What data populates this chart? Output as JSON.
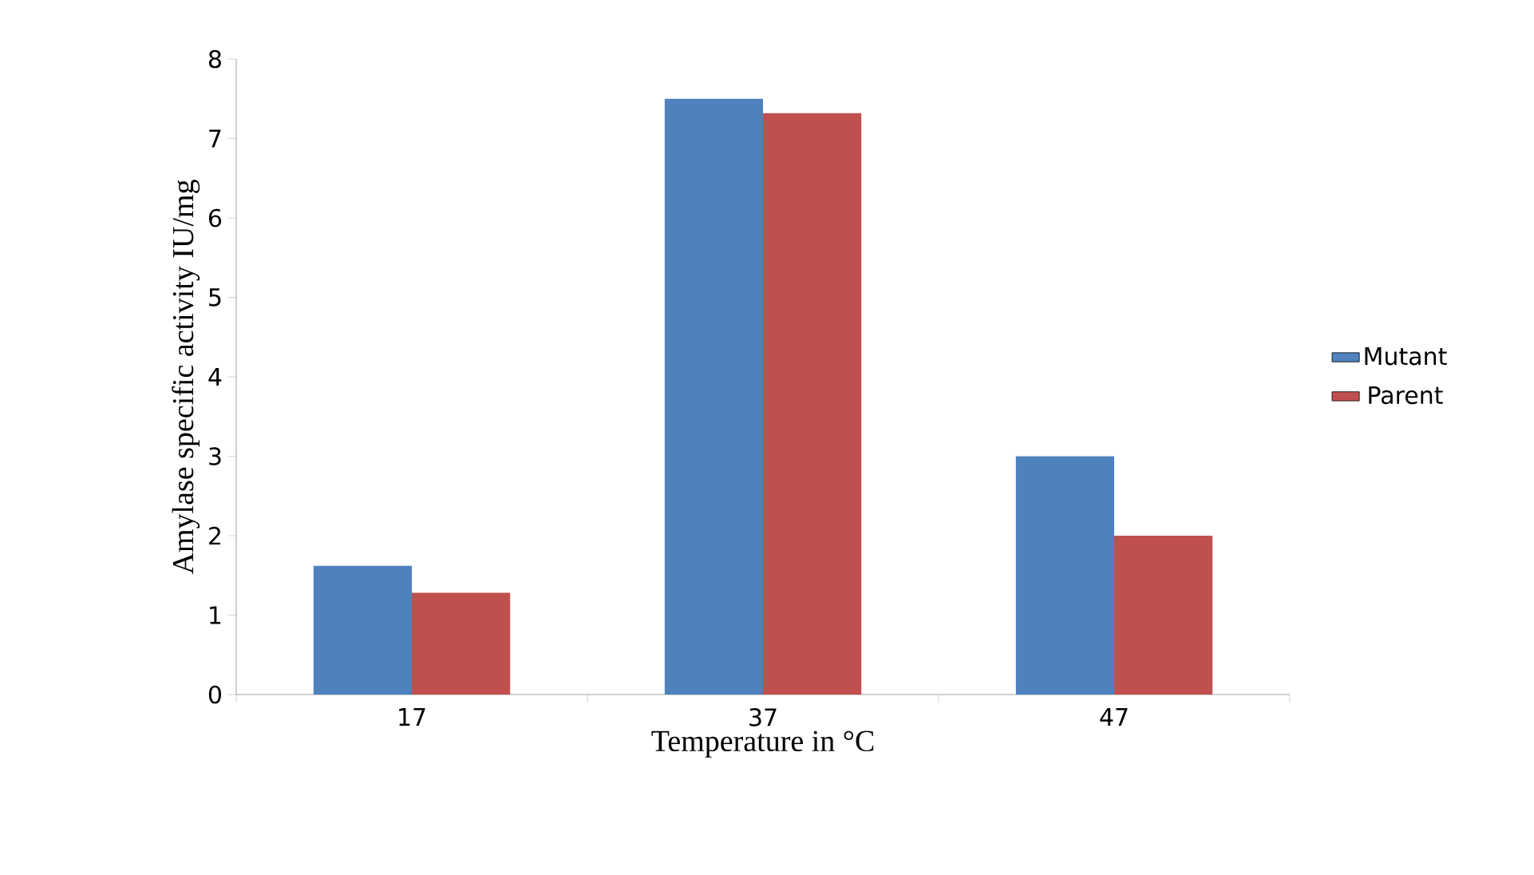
{
  "chart_data": {
    "type": "bar",
    "xlabel": "Temperature in °C",
    "ylabel": "Amylase specific activity IU/mg",
    "categories": [
      "17",
      "37",
      "47"
    ],
    "series": [
      {
        "name": "Mutant",
        "color": "#4f81bd",
        "values": [
          1.62,
          7.5,
          3.0
        ]
      },
      {
        "name": "Parent",
        "color": "#c0504d",
        "values": [
          1.28,
          7.32,
          2.0
        ]
      }
    ],
    "ylim": [
      0,
      8
    ],
    "yticks": [
      0,
      1,
      2,
      3,
      4,
      5,
      6,
      7,
      8
    ],
    "legend": "right"
  }
}
